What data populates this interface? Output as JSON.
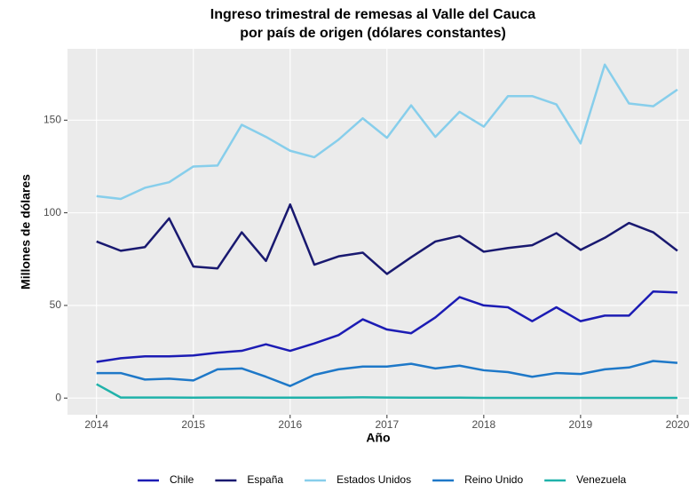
{
  "chart_data": {
    "type": "line",
    "title": [
      "Ingreso trimestral de remesas al Valle del Cauca",
      "por país de origen (dólares constantes)"
    ],
    "x_label": "Año",
    "y_label": "Millones de dólares",
    "x": [
      2014,
      2014.25,
      2014.5,
      2014.75,
      2015,
      2015.25,
      2015.5,
      2015.75,
      2016,
      2016.25,
      2016.5,
      2016.75,
      2017,
      2017.25,
      2017.5,
      2017.75,
      2018,
      2018.25,
      2018.5,
      2018.75,
      2019,
      2019.25,
      2019.5,
      2019.75,
      2020
    ],
    "series": [
      {
        "name": "Chile",
        "color": "#1c1cb4",
        "values": [
          19.5,
          21.5,
          22.5,
          22.5,
          23,
          24.5,
          25.5,
          29,
          25.5,
          29.5,
          34,
          42.5,
          37,
          35,
          43.5,
          54.5,
          50,
          49,
          41.5,
          49,
          41.5,
          44.5,
          44.5,
          57.5,
          57
        ]
      },
      {
        "name": "España",
        "color": "#191970",
        "values": [
          84.5,
          79.5,
          81.5,
          97,
          71,
          70,
          89.5,
          74,
          104.5,
          72,
          76.5,
          78.5,
          67,
          76,
          84.5,
          87.5,
          79,
          81,
          82.5,
          89,
          80,
          86.5,
          94.5,
          89.5,
          79.5
        ]
      },
      {
        "name": "Estados Unidos",
        "color": "#87ceeb",
        "values": [
          109,
          107.5,
          113.5,
          116.5,
          125,
          125.5,
          147.5,
          141,
          133.5,
          130,
          139.5,
          151,
          140.5,
          158,
          141,
          154.5,
          146.5,
          163,
          163,
          158.5,
          137.5,
          180,
          159,
          157.5,
          166.5
        ]
      },
      {
        "name": "Reino Unido",
        "color": "#1e78c8",
        "values": [
          13.5,
          13.5,
          10,
          10.5,
          9.5,
          15.5,
          16,
          11.5,
          6.5,
          12.5,
          15.5,
          17,
          17,
          18.5,
          16,
          17.5,
          15,
          14,
          11.5,
          13.5,
          13,
          15.5,
          16.5,
          20,
          19
        ]
      },
      {
        "name": "Venezuela",
        "color": "#20b2aa",
        "values": [
          7.5,
          0.3,
          0.3,
          0.3,
          0.2,
          0.3,
          0.3,
          0.2,
          0.2,
          0.2,
          0.3,
          0.4,
          0.3,
          0.2,
          0.2,
          0.2,
          0.1,
          0.1,
          0.1,
          0.1,
          0.1,
          0.1,
          0.1,
          0.1,
          0.1
        ]
      }
    ],
    "xlim": [
      2013.7,
      2020.12
    ],
    "xticks": [
      2014,
      2015,
      2016,
      2017,
      2018,
      2019,
      2020
    ],
    "ylim": [
      -9,
      188.5
    ],
    "yticks": [
      0,
      50,
      100,
      150
    ],
    "grid": true,
    "legend_position": "bottom"
  }
}
